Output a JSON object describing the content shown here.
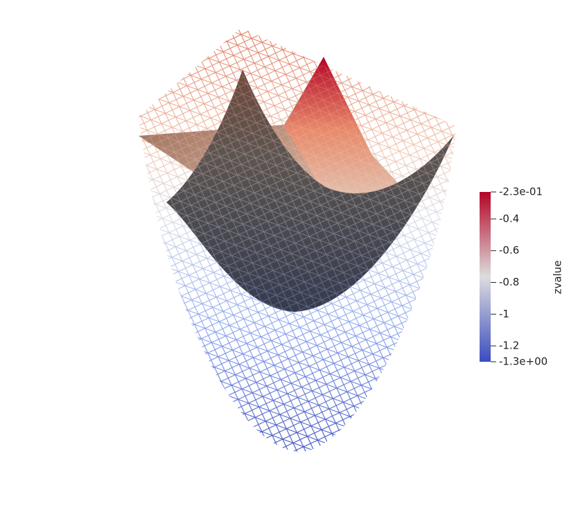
{
  "chart_data": {
    "type": "surface",
    "colorbar_title": "zvalue",
    "ylim": [
      -1.3,
      -0.23
    ],
    "yticks": [
      {
        "value": -1.3,
        "label": "-1.3e+00"
      },
      -1.2,
      -1,
      -0.8,
      -0.6,
      -0.4,
      {
        "value": -0.23,
        "label": "-2.3e-01"
      }
    ],
    "colormap": [
      "#3b4cc0",
      "#dddddd",
      "#b40426"
    ]
  }
}
